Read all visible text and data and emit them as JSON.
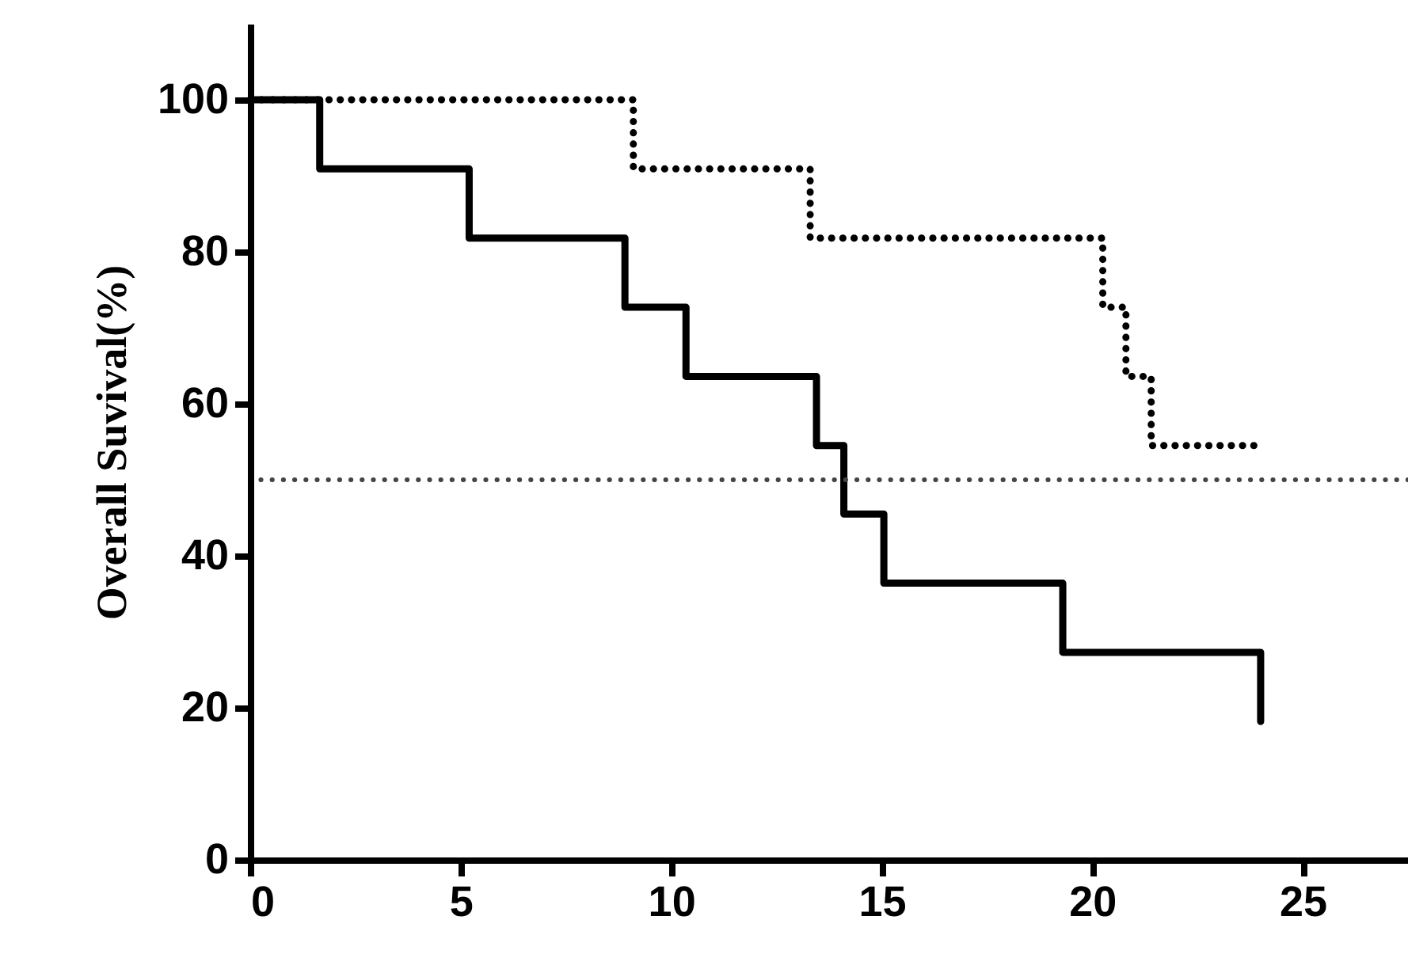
{
  "chart_data": {
    "type": "step",
    "ylabel": "Overall Suvival(%)",
    "xlim": [
      0,
      27.5
    ],
    "xticks": [
      0,
      5,
      10,
      15,
      20,
      25
    ],
    "ylim": [
      0,
      110
    ],
    "yticks": [
      0,
      20,
      40,
      60,
      80,
      100
    ],
    "grid": false,
    "marker": "none",
    "series": [
      {
        "color": "#000000",
        "line_style": "solid",
        "x": [
          0,
          1.65,
          5.2,
          8.9,
          10.35,
          13.45,
          14.1,
          15.05,
          19.3,
          24,
          24
        ],
        "values": [
          100,
          90.9,
          81.8,
          72.7,
          63.6,
          54.5,
          45.5,
          36.4,
          27.3,
          27.3,
          18.2
        ]
      },
      {
        "color": "#000000",
        "line_style": "dotted",
        "x": [
          0,
          9.1,
          13.3,
          20.25,
          20.8,
          21.4,
          24
        ],
        "values": [
          100,
          90.9,
          81.8,
          72.7,
          63.6,
          54.5,
          54.5
        ]
      }
    ],
    "ref_lines": [
      {
        "axis": "y",
        "value": 50,
        "color": "#444444",
        "line_style": "dotted"
      }
    ]
  }
}
